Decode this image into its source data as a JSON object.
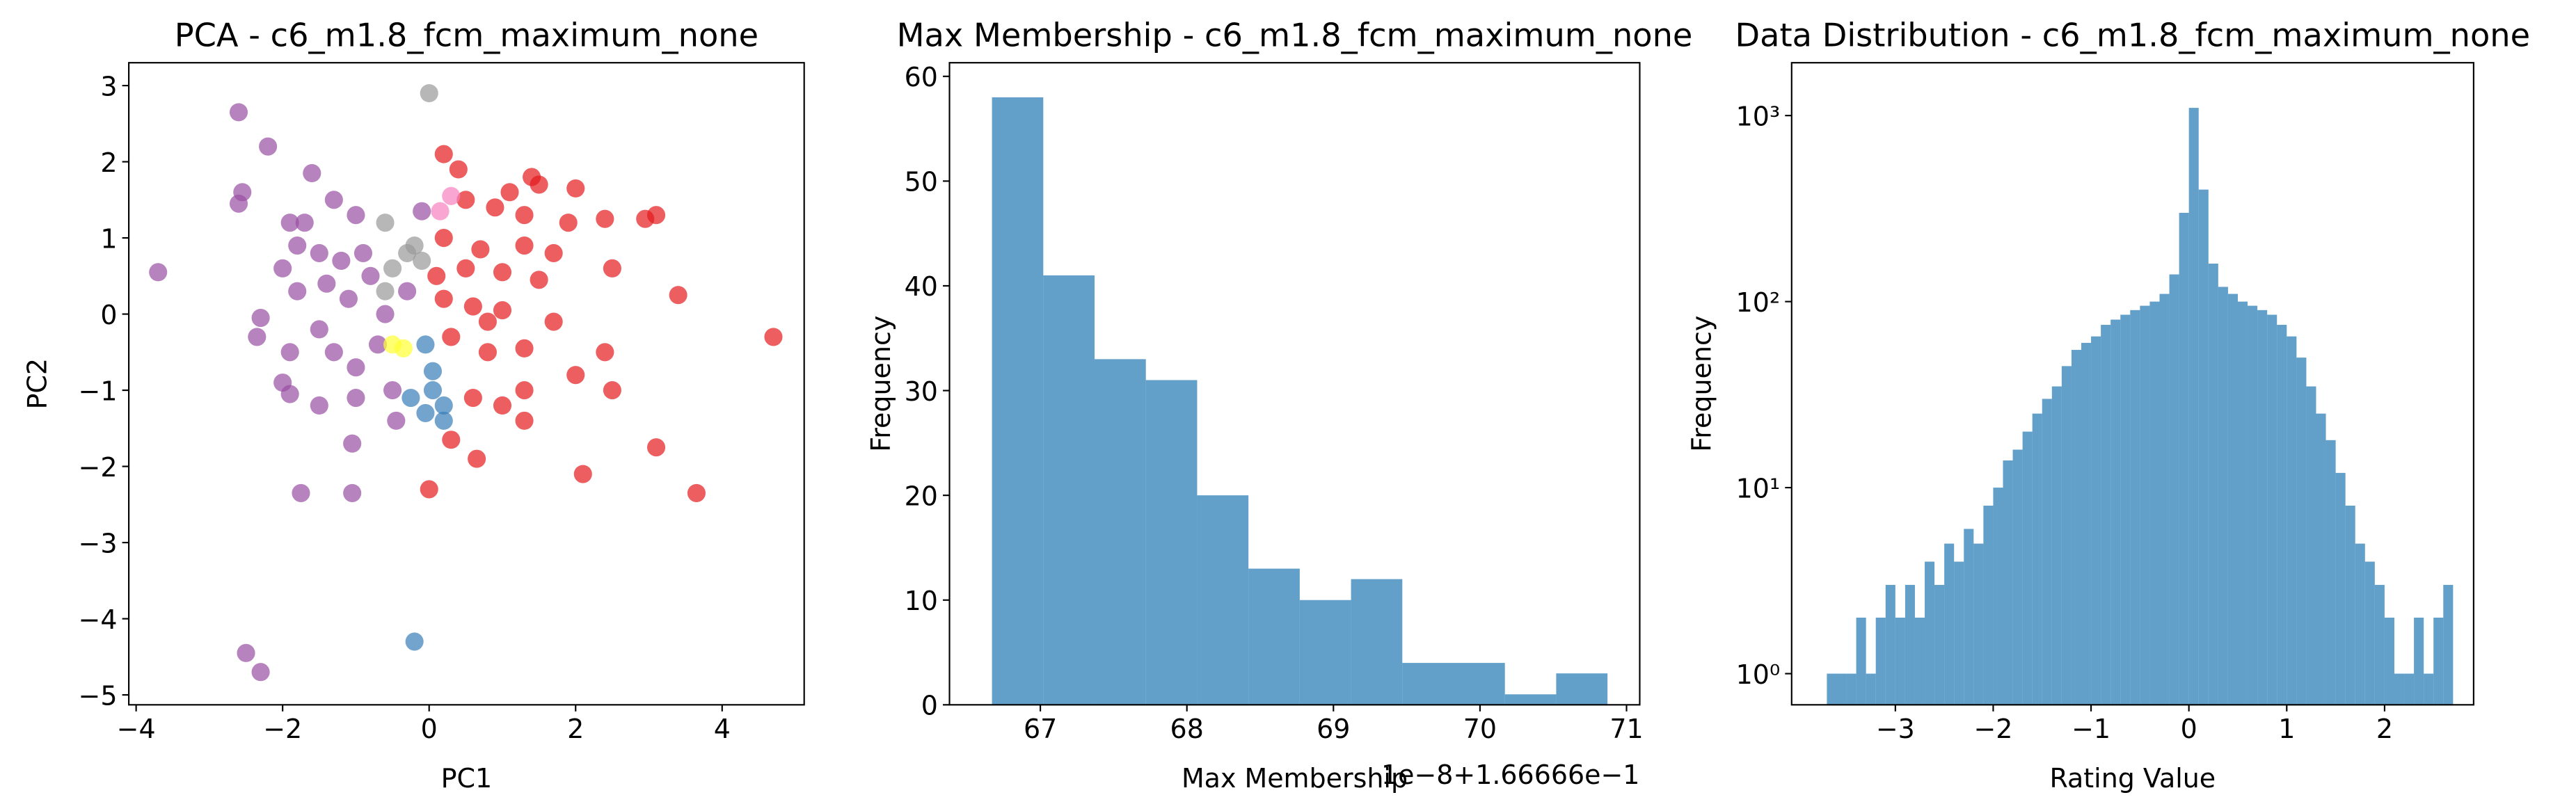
{
  "chart_data": [
    {
      "type": "scatter",
      "title": "PCA - c6_m1.8_fcm_maximum_none",
      "xlabel": "PC1",
      "ylabel": "PC2",
      "xlim": [
        -4.1,
        5.12
      ],
      "ylim": [
        -5.13,
        3.3
      ],
      "xticks": [
        {
          "value": -4,
          "label": "−4"
        },
        {
          "value": -2,
          "label": "−2"
        },
        0,
        2,
        4
      ],
      "yticks": [
        {
          "value": -5,
          "label": "−5"
        },
        {
          "value": -4,
          "label": "−4"
        },
        {
          "value": -3,
          "label": "−3"
        },
        {
          "value": -2,
          "label": "−2"
        },
        {
          "value": -1,
          "label": "−1"
        },
        0,
        1,
        2,
        3
      ],
      "alpha": 0.7,
      "series": [
        {
          "color": "#984ea3",
          "x": [
            -3.7,
            -2.6,
            -2.2,
            -2.55,
            -2.6,
            -1.6,
            -1.9,
            -1.7,
            -1.3,
            -1.0,
            -1.8,
            -1.5,
            -1.2,
            -0.9,
            -2.0,
            -1.8,
            -1.4,
            -1.1,
            -0.8,
            -2.3,
            -2.35,
            -1.9,
            -1.5,
            -1.3,
            -1.0,
            -0.7,
            -2.0,
            -1.9,
            -1.5,
            -1.0,
            -0.5,
            -1.05,
            -0.45,
            -1.75,
            -1.05,
            -2.5,
            -2.3,
            -0.3,
            -0.6,
            -0.1
          ],
          "y": [
            0.55,
            2.65,
            2.2,
            1.6,
            1.45,
            1.85,
            1.2,
            1.2,
            1.5,
            1.3,
            0.9,
            0.8,
            0.7,
            0.8,
            0.6,
            0.3,
            0.4,
            0.2,
            0.5,
            -0.05,
            -0.3,
            -0.5,
            -0.2,
            -0.5,
            -0.7,
            -0.4,
            -0.9,
            -1.05,
            -1.2,
            -1.1,
            -1.0,
            -1.7,
            -1.4,
            -2.35,
            -2.35,
            -4.45,
            -4.7,
            0.3,
            0.0,
            1.35
          ]
        },
        {
          "color": "#e41a1c",
          "x": [
            0.2,
            0.4,
            1.4,
            1.5,
            2.0,
            1.1,
            0.5,
            0.9,
            1.3,
            2.4,
            2.95,
            3.1,
            0.2,
            0.7,
            1.3,
            1.9,
            0.5,
            1.0,
            1.5,
            2.5,
            3.4,
            0.2,
            0.6,
            1.0,
            1.7,
            0.3,
            0.8,
            1.3,
            2.4,
            4.7,
            0.6,
            1.0,
            1.3,
            2.0,
            2.5,
            0.3,
            0.65,
            1.3,
            2.1,
            3.1,
            3.65,
            0.0,
            0.1,
            0.8,
            1.7
          ],
          "y": [
            2.1,
            1.9,
            1.8,
            1.7,
            1.65,
            1.6,
            1.5,
            1.4,
            1.3,
            1.25,
            1.25,
            1.3,
            1.0,
            0.85,
            0.9,
            1.2,
            0.6,
            0.55,
            0.45,
            0.6,
            0.25,
            0.2,
            0.1,
            0.05,
            -0.1,
            -0.3,
            -0.5,
            -0.45,
            -0.5,
            -0.3,
            -1.1,
            -1.2,
            -1.0,
            -0.8,
            -1.0,
            -1.65,
            -1.9,
            -1.4,
            -2.1,
            -1.75,
            -2.35,
            -2.3,
            0.5,
            -0.1,
            0.8
          ]
        },
        {
          "color": "#999999",
          "x": [
            0.0,
            -0.6,
            -0.2,
            -0.5,
            -0.3,
            -0.1,
            -0.6
          ],
          "y": [
            2.9,
            1.2,
            0.9,
            0.6,
            0.8,
            0.7,
            0.3
          ]
        },
        {
          "color": "#f781bf",
          "x": [
            0.3,
            0.15
          ],
          "y": [
            1.55,
            1.35
          ]
        },
        {
          "color": "#377eb8",
          "x": [
            -0.2,
            -0.25,
            0.05,
            0.2,
            -0.05,
            0.2,
            -0.05,
            0.05
          ],
          "y": [
            -4.3,
            -1.1,
            -1.0,
            -1.2,
            -1.3,
            -1.4,
            -0.4,
            -0.75
          ]
        },
        {
          "color": "#ffff33",
          "x": [
            -0.5,
            -0.35
          ],
          "y": [
            -0.4,
            -0.45
          ]
        }
      ]
    },
    {
      "type": "histogram",
      "title": "Max Membership - c6_m1.8_fcm_maximum_none",
      "xlabel": "Max Membership",
      "ylabel": "Frequency",
      "xaxis_offset": "1e−8+1.66666e−1",
      "xlim": [
        66.38,
        71.09
      ],
      "ylim": [
        0,
        61.3
      ],
      "xticks": [
        67,
        68,
        69,
        70,
        71
      ],
      "yticks": [
        0,
        10,
        20,
        30,
        40,
        50,
        60
      ],
      "color": "#1f77b4",
      "alpha": 0.7,
      "bins": [
        66.67,
        67.02,
        67.37,
        67.72,
        68.07,
        68.42,
        68.77,
        69.12,
        69.47,
        69.82,
        70.17,
        70.52,
        70.87
      ],
      "counts": [
        58,
        41,
        33,
        31,
        20,
        13,
        10,
        12,
        4,
        4,
        1,
        3
      ]
    },
    {
      "type": "histogram",
      "title": "Data Distribution - c6_m1.8_fcm_maximum_none",
      "xlabel": "Rating Value",
      "ylabel": "Frequency",
      "yscale": "log",
      "xlim": [
        -4.06,
        2.91
      ],
      "ylim": [
        0.68,
        1923
      ],
      "xticks": [
        {
          "value": -3,
          "label": "−3"
        },
        {
          "value": -2,
          "label": "−2"
        },
        {
          "value": -1,
          "label": "−1"
        },
        0,
        1,
        2
      ],
      "yticks": [
        {
          "value": 1,
          "label": "10⁰"
        },
        {
          "value": 10,
          "label": "10¹"
        },
        {
          "value": 100,
          "label": "10²"
        },
        {
          "value": 1000,
          "label": "10³"
        }
      ],
      "color": "#1f77b4",
      "alpha": 0.7,
      "bins": [
        -3.7,
        -3.6,
        -3.5,
        -3.4,
        -3.3,
        -3.2,
        -3.1,
        -3.0,
        -2.9,
        -2.8,
        -2.7,
        -2.6,
        -2.5,
        -2.4,
        -2.3,
        -2.2,
        -2.1,
        -2.0,
        -1.9,
        -1.8,
        -1.7,
        -1.6,
        -1.5,
        -1.4,
        -1.3,
        -1.2,
        -1.1,
        -1.0,
        -0.9,
        -0.8,
        -0.7,
        -0.6,
        -0.5,
        -0.4,
        -0.3,
        -0.2,
        -0.1,
        0.0,
        0.1,
        0.2,
        0.3,
        0.4,
        0.5,
        0.6,
        0.7,
        0.8,
        0.9,
        1.0,
        1.1,
        1.2,
        1.3,
        1.4,
        1.5,
        1.6,
        1.7,
        1.8,
        1.9,
        2.0,
        2.1,
        2.2,
        2.3,
        2.4,
        2.5,
        2.6,
        2.7
      ],
      "counts": [
        1,
        1,
        1,
        2,
        1,
        2,
        3,
        2,
        3,
        2,
        4,
        3,
        5,
        4,
        6,
        5,
        8,
        10,
        14,
        16,
        20,
        25,
        30,
        35,
        45,
        55,
        60,
        65,
        75,
        80,
        85,
        90,
        95,
        100,
        110,
        140,
        300,
        1100,
        400,
        160,
        120,
        110,
        100,
        95,
        90,
        85,
        75,
        65,
        50,
        35,
        25,
        18,
        12,
        8,
        5,
        4,
        3,
        2,
        1,
        1,
        2,
        1,
        2,
        3
      ]
    }
  ]
}
